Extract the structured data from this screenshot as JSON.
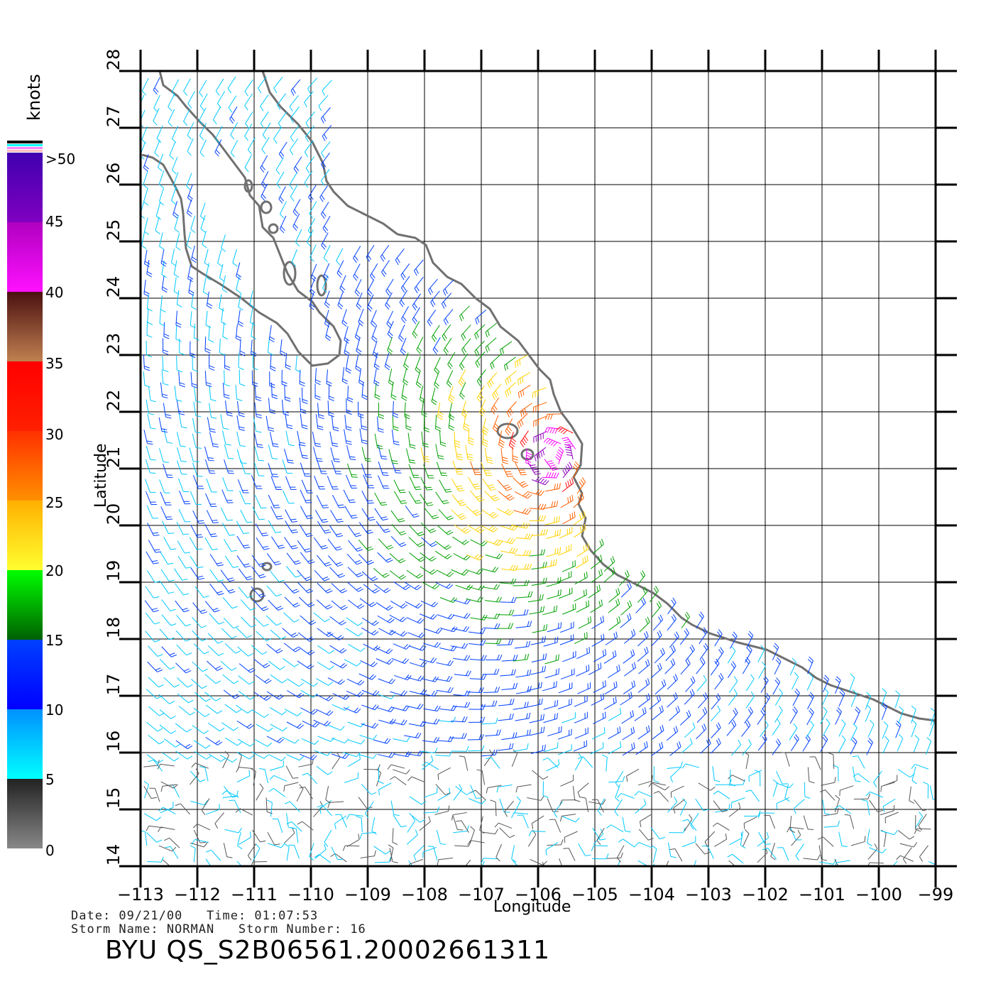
{
  "map": {
    "x_axis_label": "Longitude",
    "y_axis_label": "Latitude",
    "longitudes": [
      -113,
      -112,
      -111,
      -110,
      -109,
      -108,
      -107,
      -106,
      -105,
      -104,
      -103,
      -102,
      -101,
      -100,
      -99
    ],
    "latitudes": [
      14,
      15,
      16,
      17,
      18,
      19,
      20,
      21,
      22,
      23,
      24,
      25,
      26,
      27,
      28
    ],
    "lon_tick_labels": [
      "−113",
      "−112",
      "−111",
      "−110",
      "−109",
      "−108",
      "−107",
      "−106",
      "−105",
      "−104",
      "−103",
      "−102",
      "−101",
      "−100",
      "−99"
    ],
    "lat_tick_labels": [
      "14",
      "15",
      "16",
      "17",
      "18",
      "19",
      "20",
      "21",
      "22",
      "23",
      "24",
      "25",
      "26",
      "27",
      "28"
    ]
  },
  "legend": {
    "title": "knots",
    "labels": [
      ">50",
      "45",
      "40",
      "35",
      "30",
      "25",
      "20",
      "15",
      "10",
      "5",
      "0"
    ],
    "colors": {
      "0_5": "#555555",
      "5_10": "#00c8ff",
      "10_15": "#0040ff",
      "15_20": "#00a000",
      "20_25": "#ffd200",
      "25_30": "#ff6000",
      "30_35": "#ff1010",
      "35_40": "#a05a3c",
      "40_45": "#ff00ff",
      "45_50": "#9000c0"
    }
  },
  "storm_center": {
    "lon": -105.8,
    "lat": 21.2
  },
  "info": {
    "line1": "Date: 09/21/00   Time: 01:07:53",
    "line2": "Storm Name: NORMAN   Storm Number: 16",
    "product": "BYU QS_S2B06561.20002661311"
  }
}
